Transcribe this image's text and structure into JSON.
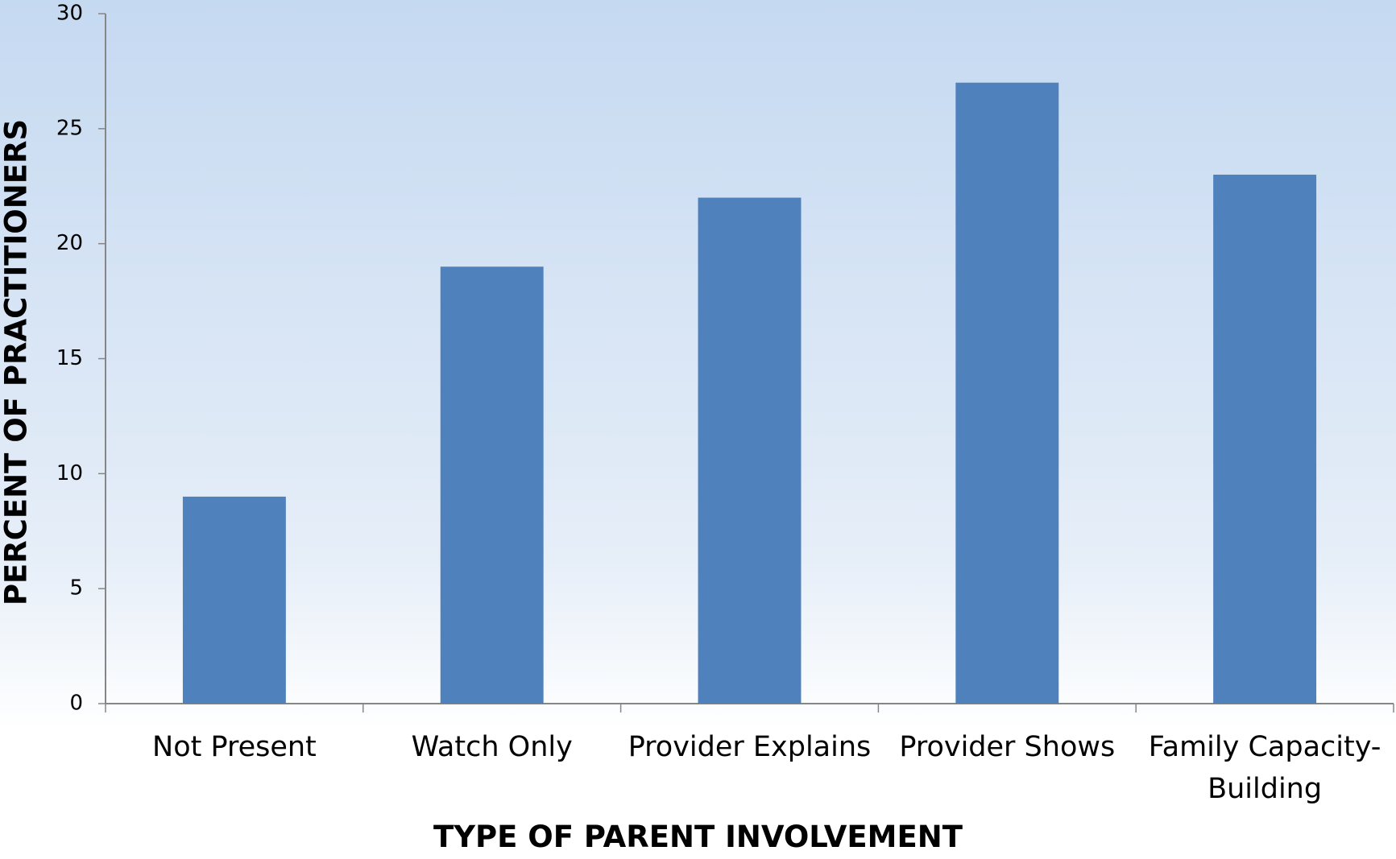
{
  "chart_data": {
    "type": "bar",
    "x_label": "TYPE OF PARENT INVOLVEMENT",
    "y_label": "PERCENT OF PRACTITIONERS",
    "categories": [
      "Not Present",
      "Watch Only",
      "Provider Explains",
      "Provider Shows",
      "Family Capacity-Building"
    ],
    "values": [
      9,
      19,
      22,
      27,
      23
    ],
    "color": "#4f81bd",
    "ylim": [
      0,
      30
    ],
    "yticks": [
      0,
      5,
      10,
      15,
      20,
      25,
      30
    ],
    "grid": false
  }
}
